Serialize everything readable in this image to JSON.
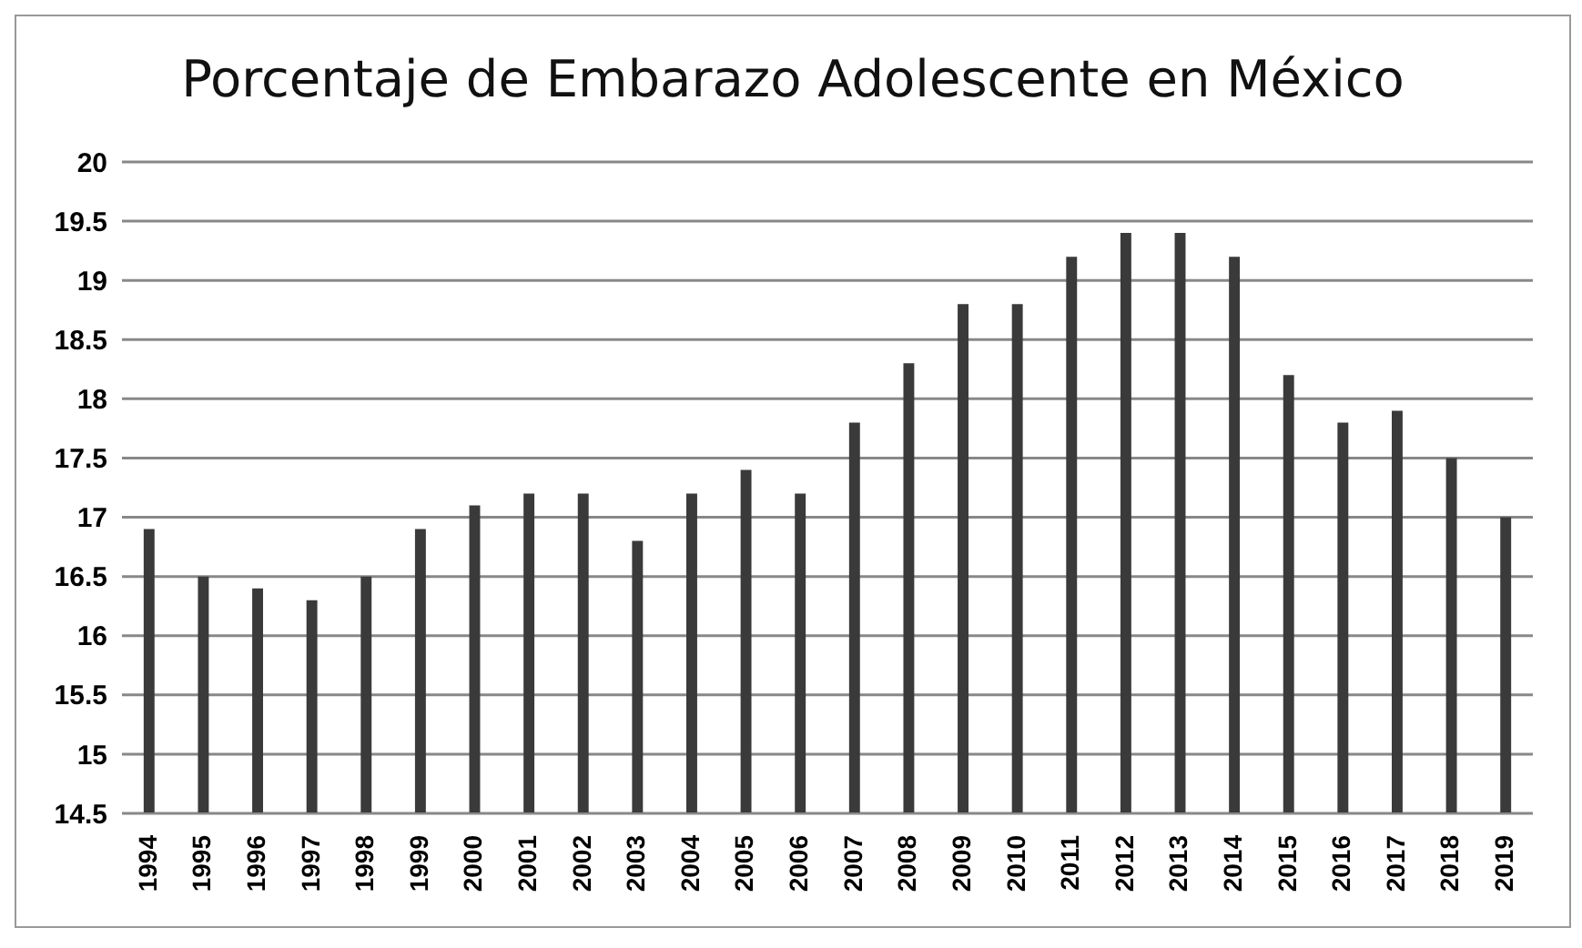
{
  "chart_data": {
    "type": "bar",
    "title": "Porcentaje de Embarazo Adolescente en México",
    "categories": [
      "1994",
      "1995",
      "1996",
      "1997",
      "1998",
      "1999",
      "2000",
      "2001",
      "2002",
      "2003",
      "2004",
      "2005",
      "2006",
      "2007",
      "2008",
      "2009",
      "2010",
      "2011",
      "2012",
      "2013",
      "2014",
      "2015",
      "2016",
      "2017",
      "2018",
      "2019"
    ],
    "values": [
      16.9,
      16.5,
      16.4,
      16.3,
      16.5,
      16.9,
      17.1,
      17.2,
      17.2,
      16.8,
      17.2,
      17.4,
      17.2,
      17.8,
      18.3,
      18.8,
      18.8,
      19.2,
      19.4,
      19.4,
      19.2,
      18.2,
      17.8,
      17.9,
      17.5,
      17.0
    ],
    "color": "#3a3a3a",
    "ylim": [
      14.5,
      20
    ],
    "yticks": [
      14.5,
      15,
      15.5,
      16,
      16.5,
      17,
      17.5,
      18,
      18.5,
      19,
      19.5,
      20
    ],
    "grid": "y"
  }
}
